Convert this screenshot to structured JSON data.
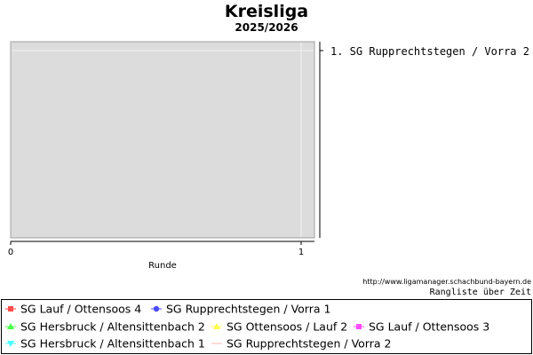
{
  "chart_data": {
    "type": "line",
    "title": "Kreisliga",
    "subtitle": "2025/2026",
    "xlabel": "Runde",
    "ylabel": "",
    "x_ticks": [
      "0",
      "1"
    ],
    "xlim": [
      0,
      1
    ],
    "grid": true,
    "rankings": [
      "1. SG Rupprechtstegen / Vorra 2"
    ],
    "legend_position": "bottom",
    "series": [
      {
        "name": "SG Lauf / Ottensoos 4",
        "color": "#ff4b4b",
        "marker": "square",
        "values": []
      },
      {
        "name": "SG Rupprechtstegen / Vorra 1",
        "color": "#4b4bff",
        "marker": "circle",
        "values": []
      },
      {
        "name": "SG Lauf / Ottensoos 3",
        "color": "#ff4bff",
        "marker": "square",
        "values": []
      },
      {
        "name": "SG Hersbruck / Altensittenbach 2",
        "color": "#4bff4b",
        "marker": "triangle",
        "values": []
      },
      {
        "name": "SG Ottensoos / Lauf 2",
        "color": "#ffff4b",
        "marker": "triangle",
        "values": []
      },
      {
        "name": "SG Hersbruck / Altensittenbach 1",
        "color": "#4bffff",
        "marker": "triangle-down",
        "values": []
      },
      {
        "name": "SG Rupprechtstegen / Vorra 2",
        "color": "#ffb4b4",
        "marker": "line",
        "values": []
      }
    ]
  },
  "footer": {
    "url": "http://www.ligamanager.schachbund-bayern.de",
    "caption": "Rangliste über Zeit"
  }
}
